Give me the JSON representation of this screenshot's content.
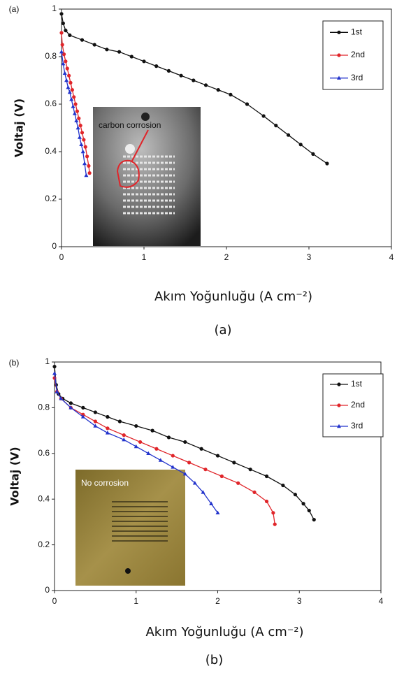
{
  "chart_data": [
    {
      "type": "line",
      "panel_label": "(a)",
      "caption": "(a)",
      "x_label": "Akım Yoğunluğu (A cm⁻²)",
      "y_label": "Voltaj (V)",
      "xlim": [
        0,
        4
      ],
      "ylim": [
        0,
        1
      ],
      "xticks": [
        0,
        1,
        2,
        3,
        4
      ],
      "yticks": [
        0,
        0.2,
        0.4,
        0.6,
        0.8,
        1
      ],
      "legend": "upper right",
      "annotations": [
        "carbon corrosion"
      ],
      "series": [
        {
          "name": "1st",
          "color": "#111111",
          "marker": "circle",
          "x": [
            0,
            0.02,
            0.05,
            0.1,
            0.25,
            0.4,
            0.55,
            0.7,
            0.85,
            1.0,
            1.15,
            1.3,
            1.45,
            1.6,
            1.75,
            1.9,
            2.05,
            2.25,
            2.45,
            2.6,
            2.75,
            2.9,
            3.05,
            3.22
          ],
          "values": [
            0.98,
            0.94,
            0.91,
            0.89,
            0.87,
            0.85,
            0.83,
            0.82,
            0.8,
            0.78,
            0.76,
            0.74,
            0.72,
            0.7,
            0.68,
            0.66,
            0.64,
            0.6,
            0.55,
            0.51,
            0.47,
            0.43,
            0.39,
            0.35
          ]
        },
        {
          "name": "2nd",
          "color": "#e0252a",
          "marker": "circle",
          "x": [
            0,
            0.01,
            0.03,
            0.05,
            0.07,
            0.09,
            0.11,
            0.13,
            0.15,
            0.17,
            0.19,
            0.21,
            0.23,
            0.25,
            0.27,
            0.29,
            0.31,
            0.33,
            0.34
          ],
          "values": [
            0.9,
            0.85,
            0.81,
            0.78,
            0.75,
            0.72,
            0.69,
            0.66,
            0.63,
            0.6,
            0.57,
            0.54,
            0.51,
            0.48,
            0.45,
            0.42,
            0.38,
            0.34,
            0.31
          ]
        },
        {
          "name": "3rd",
          "color": "#2233cc",
          "marker": "triangle",
          "x": [
            0,
            0.02,
            0.04,
            0.06,
            0.08,
            0.1,
            0.12,
            0.14,
            0.16,
            0.18,
            0.2,
            0.22,
            0.24,
            0.26,
            0.28,
            0.3
          ],
          "values": [
            0.82,
            0.77,
            0.73,
            0.7,
            0.67,
            0.65,
            0.62,
            0.59,
            0.56,
            0.53,
            0.5,
            0.46,
            0.43,
            0.4,
            0.35,
            0.3
          ]
        }
      ]
    },
    {
      "type": "line",
      "panel_label": "(b)",
      "caption": "(b)",
      "x_label": "Akım Yoğunluğu (A cm⁻²)",
      "y_label": "Voltaj (V)",
      "xlim": [
        0,
        4
      ],
      "ylim": [
        0,
        1
      ],
      "xticks": [
        0,
        1,
        2,
        3,
        4
      ],
      "yticks": [
        0,
        0.2,
        0.4,
        0.6,
        0.8,
        1
      ],
      "legend": "upper right",
      "annotations": [
        "No corrosion"
      ],
      "series": [
        {
          "name": "1st",
          "color": "#111111",
          "marker": "circle",
          "x": [
            0,
            0.02,
            0.05,
            0.1,
            0.2,
            0.35,
            0.5,
            0.65,
            0.8,
            1.0,
            1.2,
            1.4,
            1.6,
            1.8,
            2.0,
            2.2,
            2.4,
            2.6,
            2.8,
            2.95,
            3.05,
            3.12,
            3.18
          ],
          "values": [
            0.98,
            0.9,
            0.86,
            0.84,
            0.82,
            0.8,
            0.78,
            0.76,
            0.74,
            0.72,
            0.7,
            0.67,
            0.65,
            0.62,
            0.59,
            0.56,
            0.53,
            0.5,
            0.46,
            0.42,
            0.38,
            0.35,
            0.31
          ]
        },
        {
          "name": "2nd",
          "color": "#e0252a",
          "marker": "circle",
          "x": [
            0,
            0.03,
            0.08,
            0.2,
            0.35,
            0.5,
            0.65,
            0.85,
            1.05,
            1.25,
            1.45,
            1.65,
            1.85,
            2.05,
            2.25,
            2.45,
            2.6,
            2.68,
            2.7
          ],
          "values": [
            0.93,
            0.87,
            0.84,
            0.8,
            0.77,
            0.74,
            0.71,
            0.68,
            0.65,
            0.62,
            0.59,
            0.56,
            0.53,
            0.5,
            0.47,
            0.43,
            0.39,
            0.34,
            0.29
          ]
        },
        {
          "name": "3rd",
          "color": "#2233cc",
          "marker": "triangle",
          "x": [
            0,
            0.03,
            0.08,
            0.2,
            0.35,
            0.5,
            0.65,
            0.85,
            1.0,
            1.15,
            1.3,
            1.45,
            1.6,
            1.72,
            1.82,
            1.92,
            2.0
          ],
          "values": [
            0.95,
            0.87,
            0.84,
            0.8,
            0.76,
            0.72,
            0.69,
            0.66,
            0.63,
            0.6,
            0.57,
            0.54,
            0.51,
            0.47,
            0.43,
            0.38,
            0.34
          ]
        }
      ]
    }
  ]
}
